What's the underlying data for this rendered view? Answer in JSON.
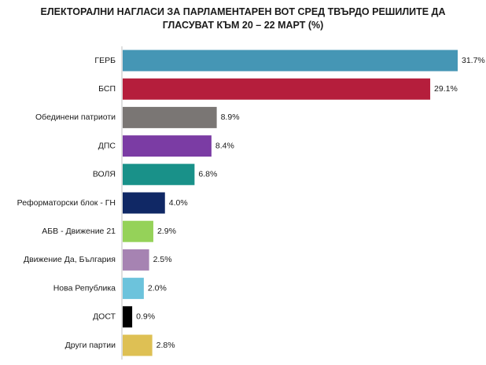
{
  "title": {
    "line1": "ЕЛЕКТОРАЛНИ НАГЛАСИ ЗА ПАРЛАМЕНТАРЕН ВОТ СРЕД ТВЪРДО РЕШИЛИТЕ ДА",
    "line2": "ГЛАСУВАТ КЪМ 20 – 22 МАРТ (%)"
  },
  "chart_data": {
    "type": "bar",
    "orientation": "horizontal",
    "title": "ЕЛЕКТОРАЛНИ НАГЛАСИ ЗА ПАРЛАМЕНТАРЕН ВОТ СРЕД ТВЪРДО РЕШИЛИТЕ ДА ГЛАСУВАТ КЪМ 20 – 22 МАРТ (%)",
    "categories": [
      "ГЕРБ",
      "БСП",
      "Обединени патриоти",
      "ДПС",
      "ВОЛЯ",
      "Реформаторски блок - ГН",
      "АБВ - Движение 21",
      "Движение Да, България",
      "Нова Република",
      "ДОСТ",
      "Други партии"
    ],
    "values": [
      31.7,
      29.1,
      8.9,
      8.4,
      6.8,
      4.0,
      2.9,
      2.5,
      2.0,
      0.9,
      2.8
    ],
    "value_labels": [
      "31.7%",
      "29.1%",
      "8.9%",
      "8.4%",
      "6.8%",
      "4.0%",
      "2.9%",
      "2.5%",
      "2.0%",
      "0.9%",
      "2.8%"
    ],
    "colors": [
      "#4596B5",
      "#B51E3C",
      "#7A7674",
      "#7B3CA4",
      "#199189",
      "#102865",
      "#95D259",
      "#A683B2",
      "#6CC3DC",
      "#000000",
      "#DEC054"
    ],
    "xlim": [
      0,
      31.7
    ],
    "grid": false,
    "legend": "none"
  }
}
